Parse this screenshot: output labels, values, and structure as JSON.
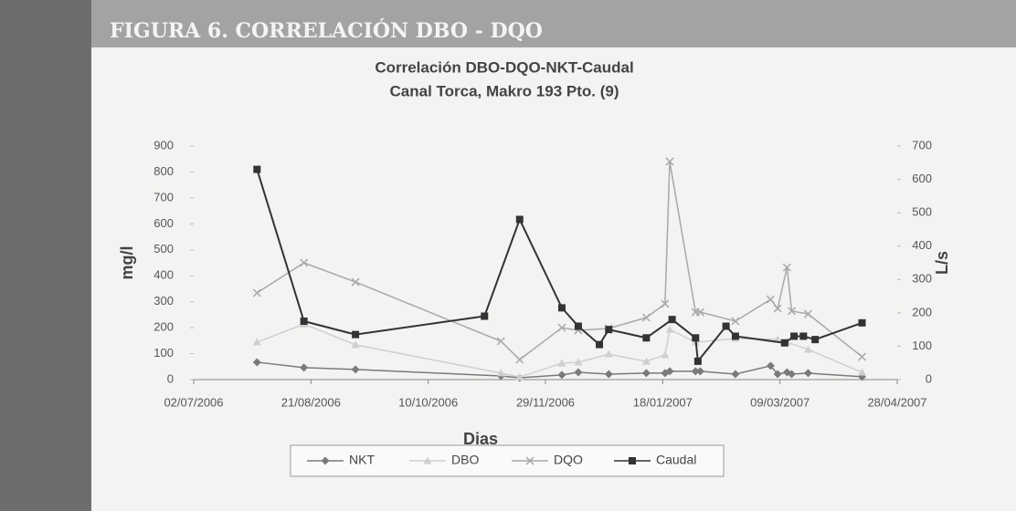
{
  "header": {
    "title": "FIGURA 6. CORRELACIÓN DBO - DQO"
  },
  "chart_data": {
    "type": "line",
    "title": "Correlación DBO-DQO-NKT-Caudal",
    "subtitle": "Canal Torca, Makro 193 Pto. (9)",
    "x_label": "Dias",
    "y_label": "mg/l",
    "y2_label": "L/s",
    "xlim": [
      "02/07/2006",
      "28/04/2007"
    ],
    "xticks": [
      "02/07/2006",
      "21/08/2006",
      "10/10/2006",
      "29/11/2006",
      "18/01/2007",
      "09/03/2007",
      "28/04/2007"
    ],
    "ylim": [
      0,
      900
    ],
    "yticks": [
      0,
      100,
      200,
      300,
      400,
      500,
      600,
      700,
      800,
      900
    ],
    "y2lim": [
      0,
      700
    ],
    "y2ticks": [
      0,
      100,
      200,
      300,
      400,
      500,
      600,
      700
    ],
    "series": [
      {
        "name": "NKT",
        "color": "#7a7a7a",
        "marker": "diamond",
        "x": [
          "29/07/2006",
          "18/08/2006",
          "09/09/2006",
          "10/11/2006",
          "18/11/2006",
          "06/12/2006",
          "13/12/2006",
          "26/12/2006",
          "11/01/2007",
          "19/01/2007",
          "21/01/2007",
          "01/02/2007",
          "03/02/2007",
          "18/02/2007",
          "05/03/2007",
          "08/03/2007",
          "12/03/2007",
          "14/03/2007",
          "21/03/2007",
          "13/04/2007"
        ],
        "values": [
          67,
          46,
          39,
          14,
          7,
          18,
          28,
          21,
          25,
          25,
          32,
          32,
          32,
          21,
          53,
          21,
          28,
          21,
          25,
          11
        ]
      },
      {
        "name": "DBO",
        "color": "#cfcfcf",
        "marker": "triangle",
        "x": [
          "29/07/2006",
          "18/08/2006",
          "09/09/2006",
          "10/11/2006",
          "18/11/2006",
          "06/12/2006",
          "13/12/2006",
          "26/12/2006",
          "11/01/2007",
          "19/01/2007",
          "21/01/2007",
          "01/02/2007",
          "18/02/2007",
          "08/03/2007",
          "12/03/2007",
          "21/03/2007",
          "13/04/2007"
        ],
        "values": [
          144,
          214,
          134,
          25,
          10,
          63,
          67,
          98,
          70,
          95,
          193,
          144,
          158,
          155,
          144,
          116,
          28
        ]
      },
      {
        "name": "DQO",
        "color": "#a8a8a8",
        "marker": "x",
        "x": [
          "29/07/2006",
          "18/08/2006",
          "09/09/2006",
          "10/11/2006",
          "18/11/2006",
          "06/12/2006",
          "13/12/2006",
          "26/12/2006",
          "11/01/2007",
          "19/01/2007",
          "21/01/2007",
          "01/02/2007",
          "03/02/2007",
          "18/02/2007",
          "05/03/2007",
          "08/03/2007",
          "12/03/2007",
          "14/03/2007",
          "21/03/2007",
          "13/04/2007"
        ],
        "values": [
          334,
          450,
          376,
          148,
          77,
          200,
          190,
          197,
          239,
          292,
          840,
          260,
          260,
          225,
          309,
          274,
          432,
          264,
          253,
          88
        ]
      },
      {
        "name": "Caudal",
        "color": "#333333",
        "marker": "square",
        "axis": "y2",
        "x": [
          "29/07/2006",
          "18/08/2006",
          "09/09/2006",
          "03/11/2006",
          "18/11/2006",
          "06/12/2006",
          "13/12/2006",
          "22/12/2006",
          "26/12/2006",
          "11/01/2007",
          "22/01/2007",
          "01/02/2007",
          "02/02/2007",
          "14/02/2007",
          "18/02/2007",
          "11/03/2007",
          "15/03/2007",
          "19/03/2007",
          "24/03/2007",
          "13/04/2007"
        ],
        "values": [
          630,
          175,
          135,
          190,
          480,
          215,
          160,
          105,
          150,
          125,
          180,
          125,
          55,
          160,
          130,
          110,
          130,
          130,
          120,
          170
        ]
      }
    ]
  }
}
